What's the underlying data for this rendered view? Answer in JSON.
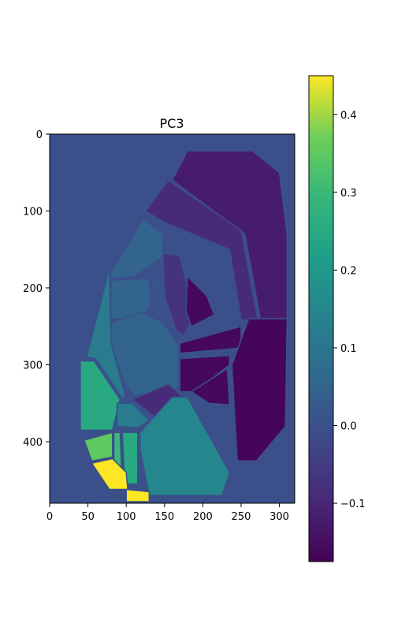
{
  "chart_data": {
    "type": "heatmap",
    "title": "PC3",
    "xlabel": "",
    "ylabel": "",
    "xlim": [
      0,
      320
    ],
    "ylim": [
      480,
      0
    ],
    "x_ticks": [
      0,
      50,
      100,
      150,
      200,
      250,
      300
    ],
    "y_ticks": [
      0,
      100,
      200,
      300,
      400
    ],
    "colormap": "viridis",
    "colorbar": {
      "range": [
        -0.175,
        0.45
      ],
      "ticks": [
        -0.1,
        0.0,
        0.1,
        0.2,
        0.3,
        0.4
      ],
      "tick_labels": [
        "−0.1",
        "0.0",
        "0.1",
        "0.2",
        "0.3",
        "0.4"
      ],
      "placement": "right"
    },
    "background_value": 0.0,
    "regions": [
      {
        "value": -0.12,
        "points": [
          [
            160,
            60
          ],
          [
            180,
            22
          ],
          [
            265,
            22
          ],
          [
            300,
            50
          ],
          [
            310,
            130
          ],
          [
            310,
            240
          ],
          [
            275,
            240
          ],
          [
            255,
            130
          ]
        ]
      },
      {
        "value": -0.09,
        "points": [
          [
            125,
            100
          ],
          [
            155,
            60
          ],
          [
            250,
            125
          ],
          [
            272,
            242
          ],
          [
            250,
            242
          ],
          [
            235,
            150
          ],
          [
            150,
            115
          ]
        ]
      },
      {
        "value": 0.05,
        "points": [
          [
            80,
            180
          ],
          [
            122,
            110
          ],
          [
            148,
            130
          ],
          [
            148,
            160
          ],
          [
            110,
            185
          ],
          [
            80,
            188
          ]
        ]
      },
      {
        "value": -0.07,
        "points": [
          [
            148,
            155
          ],
          [
            170,
            158
          ],
          [
            180,
            200
          ],
          [
            185,
            245
          ],
          [
            175,
            262
          ],
          [
            165,
            255
          ],
          [
            150,
            210
          ]
        ]
      },
      {
        "value": -0.16,
        "points": [
          [
            180,
            185
          ],
          [
            205,
            210
          ],
          [
            215,
            235
          ],
          [
            185,
            250
          ],
          [
            178,
            230
          ]
        ]
      },
      {
        "value": -0.16,
        "points": [
          [
            170,
            272
          ],
          [
            250,
            250
          ],
          [
            250,
            278
          ],
          [
            170,
            285
          ]
        ]
      },
      {
        "value": -0.16,
        "points": [
          [
            170,
            292
          ],
          [
            235,
            288
          ],
          [
            235,
            300
          ],
          [
            190,
            335
          ],
          [
            170,
            335
          ]
        ]
      },
      {
        "value": -0.16,
        "points": [
          [
            185,
            335
          ],
          [
            232,
            305
          ],
          [
            235,
            352
          ],
          [
            208,
            350
          ]
        ]
      },
      {
        "value": -0.165,
        "points": [
          [
            260,
            240
          ],
          [
            310,
            240
          ],
          [
            308,
            380
          ],
          [
            270,
            425
          ],
          [
            245,
            425
          ],
          [
            238,
            300
          ]
        ]
      },
      {
        "value": 0.05,
        "points": [
          [
            80,
            190
          ],
          [
            130,
            188
          ],
          [
            132,
            220
          ],
          [
            122,
            240
          ],
          [
            80,
            240
          ]
        ]
      },
      {
        "value": 0.01,
        "points": [
          [
            133,
            188
          ],
          [
            148,
            190
          ],
          [
            152,
            222
          ],
          [
            135,
            222
          ]
        ]
      },
      {
        "value": 0.05,
        "points": [
          [
            80,
            245
          ],
          [
            120,
            232
          ],
          [
            148,
            245
          ],
          [
            168,
            275
          ],
          [
            168,
            330
          ],
          [
            110,
            340
          ],
          [
            96,
            320
          ],
          [
            80,
            270
          ]
        ]
      },
      {
        "value": 0.12,
        "points": [
          [
            48,
            290
          ],
          [
            78,
            175
          ],
          [
            80,
            270
          ],
          [
            98,
            338
          ],
          [
            96,
            345
          ],
          [
            60,
            292
          ]
        ]
      },
      {
        "value": 0.25,
        "points": [
          [
            40,
            295
          ],
          [
            58,
            295
          ],
          [
            92,
            345
          ],
          [
            82,
            385
          ],
          [
            40,
            385
          ]
        ]
      },
      {
        "value": -0.09,
        "points": [
          [
            108,
            345
          ],
          [
            155,
            325
          ],
          [
            172,
            340
          ],
          [
            140,
            370
          ]
        ]
      },
      {
        "value": 0.12,
        "points": [
          [
            88,
            350
          ],
          [
            108,
            350
          ],
          [
            130,
            372
          ],
          [
            115,
            382
          ],
          [
            88,
            380
          ]
        ]
      },
      {
        "value": 0.35,
        "points": [
          [
            45,
            398
          ],
          [
            82,
            388
          ],
          [
            82,
            420
          ],
          [
            55,
            425
          ]
        ]
      },
      {
        "value": 0.3,
        "points": [
          [
            84,
            388
          ],
          [
            92,
            388
          ],
          [
            94,
            440
          ],
          [
            84,
            440
          ]
        ]
      },
      {
        "value": 0.25,
        "points": [
          [
            95,
            388
          ],
          [
            115,
            388
          ],
          [
            115,
            455
          ],
          [
            98,
            455
          ]
        ]
      },
      {
        "value": 0.15,
        "points": [
          [
            118,
            388
          ],
          [
            160,
            342
          ],
          [
            180,
            342
          ],
          [
            235,
            440
          ],
          [
            225,
            470
          ],
          [
            130,
            470
          ],
          [
            118,
            410
          ]
        ]
      },
      {
        "value": 0.45,
        "points": [
          [
            55,
            428
          ],
          [
            82,
            422
          ],
          [
            100,
            440
          ],
          [
            102,
            462
          ],
          [
            78,
            462
          ]
        ]
      },
      {
        "value": 0.45,
        "points": [
          [
            100,
            462
          ],
          [
            130,
            465
          ],
          [
            130,
            478
          ],
          [
            100,
            478
          ]
        ]
      }
    ]
  }
}
